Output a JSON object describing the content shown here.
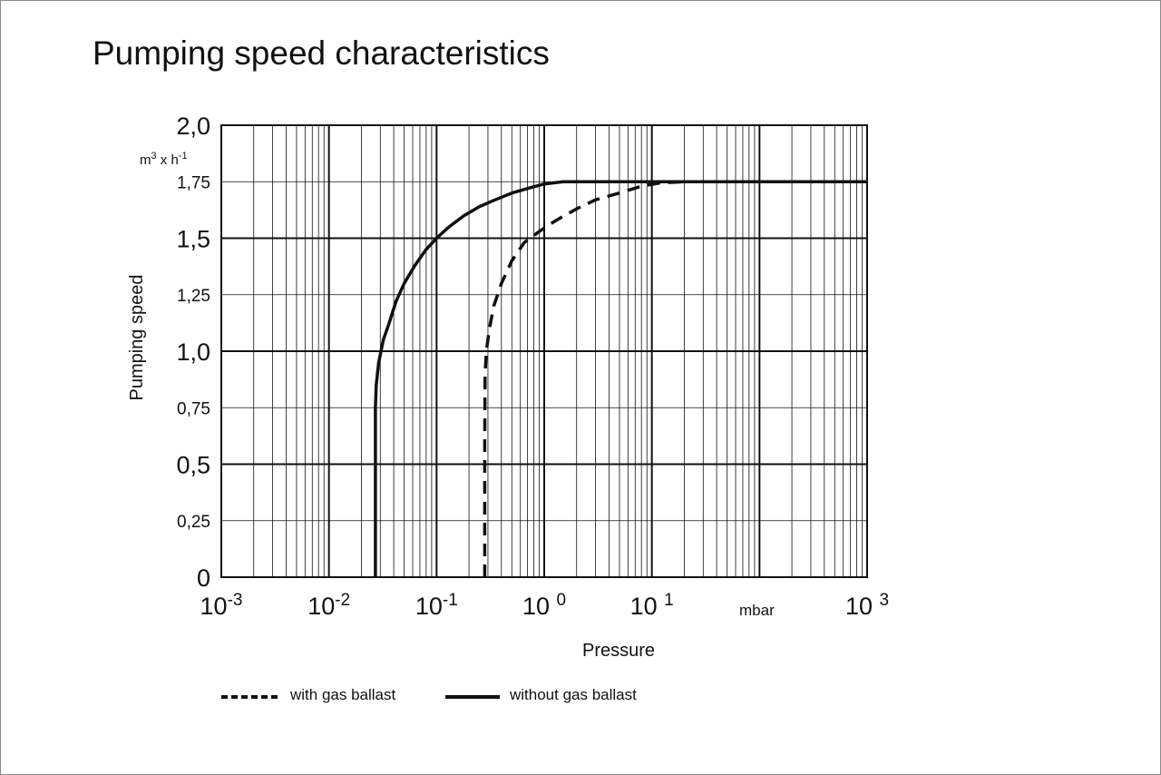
{
  "chart_data": {
    "type": "line",
    "title": "Pumping speed characteristics",
    "xlabel": "Pressure",
    "ylabel": "Pumping speed",
    "y_unit": [
      "m",
      "3",
      " x h",
      "-1"
    ],
    "x_unit": "mbar",
    "x_scale": "log",
    "xlim": [
      0.001,
      1000
    ],
    "ylim": [
      0,
      2.0
    ],
    "grid": true,
    "y_ticks": [
      {
        "value": 0,
        "label": "0",
        "major": true
      },
      {
        "value": 0.25,
        "label": "0,25",
        "major": false
      },
      {
        "value": 0.5,
        "label": "0,5",
        "major": true
      },
      {
        "value": 0.75,
        "label": "0,75",
        "major": false
      },
      {
        "value": 1.0,
        "label": "1,0",
        "major": true
      },
      {
        "value": 1.25,
        "label": "1,25",
        "major": false
      },
      {
        "value": 1.5,
        "label": "1,5",
        "major": true
      },
      {
        "value": 1.75,
        "label": "1,75",
        "major": false
      },
      {
        "value": 2.0,
        "label": "2,0",
        "major": true
      }
    ],
    "x_ticks": [
      {
        "value": 0.001,
        "base": "10",
        "exp": "-3"
      },
      {
        "value": 0.01,
        "base": "10",
        "exp": "-2"
      },
      {
        "value": 0.1,
        "base": "10",
        "exp": "-1"
      },
      {
        "value": 1,
        "base": "10 ",
        "exp": "0"
      },
      {
        "value": 10,
        "base": "10 ",
        "exp": "1"
      },
      {
        "value": 1000,
        "base": "10 ",
        "exp": "3"
      }
    ],
    "series": [
      {
        "name": "with gas ballast",
        "dash": true,
        "x": [
          0.28,
          0.28,
          0.282,
          0.29,
          0.31,
          0.34,
          0.4,
          0.5,
          0.65,
          0.9,
          1.3,
          2,
          3,
          5,
          8,
          12,
          20,
          50,
          100,
          300,
          1000
        ],
        "y": [
          0,
          0.6,
          0.9,
          1.0,
          1.1,
          1.2,
          1.3,
          1.4,
          1.48,
          1.53,
          1.58,
          1.63,
          1.67,
          1.7,
          1.73,
          1.745,
          1.75,
          1.75,
          1.75,
          1.75,
          1.75
        ]
      },
      {
        "name": "without gas ballast",
        "dash": false,
        "x": [
          0.027,
          0.027,
          0.0275,
          0.029,
          0.032,
          0.036,
          0.042,
          0.05,
          0.063,
          0.08,
          0.1,
          0.13,
          0.18,
          0.25,
          0.35,
          0.5,
          0.7,
          1.0,
          1.5,
          2,
          3,
          10,
          100,
          1000
        ],
        "y": [
          0,
          0.75,
          0.85,
          0.95,
          1.05,
          1.12,
          1.22,
          1.3,
          1.38,
          1.45,
          1.5,
          1.55,
          1.6,
          1.64,
          1.67,
          1.7,
          1.72,
          1.74,
          1.75,
          1.75,
          1.75,
          1.75,
          1.75,
          1.75
        ]
      }
    ],
    "legend": "bottom"
  }
}
